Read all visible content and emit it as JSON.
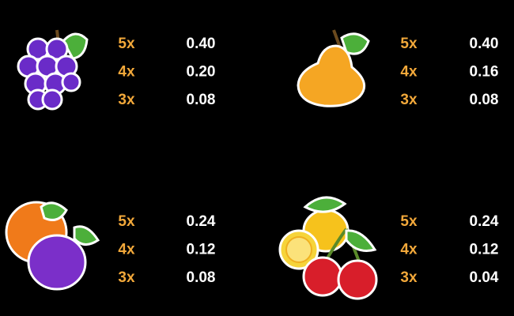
{
  "symbols": [
    {
      "name": "grapes",
      "pays": [
        {
          "count": "5x",
          "value": "0.40"
        },
        {
          "count": "4x",
          "value": "0.20"
        },
        {
          "count": "3x",
          "value": "0.08"
        }
      ]
    },
    {
      "name": "pear",
      "pays": [
        {
          "count": "5x",
          "value": "0.40"
        },
        {
          "count": "4x",
          "value": "0.16"
        },
        {
          "count": "3x",
          "value": "0.08"
        }
      ]
    },
    {
      "name": "orange-plum",
      "pays": [
        {
          "count": "5x",
          "value": "0.24"
        },
        {
          "count": "4x",
          "value": "0.12"
        },
        {
          "count": "3x",
          "value": "0.08"
        }
      ]
    },
    {
      "name": "lemon-cherry",
      "pays": [
        {
          "count": "5x",
          "value": "0.24"
        },
        {
          "count": "4x",
          "value": "0.12"
        },
        {
          "count": "3x",
          "value": "0.04"
        }
      ]
    }
  ]
}
